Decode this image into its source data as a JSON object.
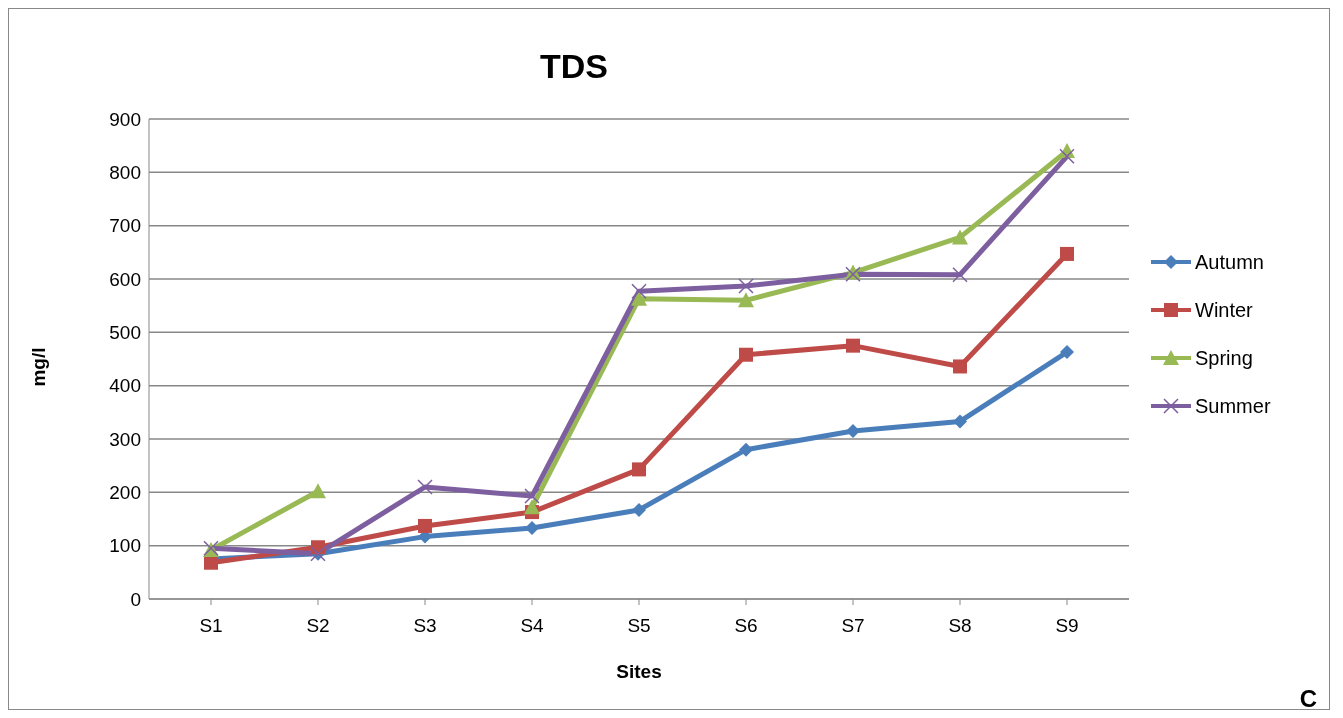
{
  "chart_data": {
    "type": "line",
    "title": "TDS",
    "xlabel": "Sites",
    "ylabel": "mg/l",
    "categories": [
      "S1",
      "S2",
      "S3",
      "S4",
      "S5",
      "S6",
      "S7",
      "S8",
      "S9"
    ],
    "series": [
      {
        "name": "Autumn",
        "color": "#4a7ebb",
        "marker": "diamond",
        "values": [
          75,
          85,
          117,
          133,
          167,
          280,
          315,
          333,
          463
        ]
      },
      {
        "name": "Winter",
        "color": "#be4b48",
        "marker": "square",
        "values": [
          68,
          97,
          137,
          163,
          243,
          458,
          475,
          436,
          647
        ]
      },
      {
        "name": "Spring",
        "color": "#98b954",
        "marker": "triangle",
        "values": [
          92,
          202,
          null,
          172,
          563,
          560,
          612,
          678,
          840
        ]
      },
      {
        "name": "Summer",
        "color": "#7d5fa0",
        "marker": "cross",
        "values": [
          95,
          85,
          210,
          193,
          577,
          587,
          609,
          608,
          830
        ]
      }
    ],
    "ylim": [
      0,
      900
    ],
    "yticks": [
      0,
      100,
      200,
      300,
      400,
      500,
      600,
      700,
      800,
      900
    ],
    "grid": "y",
    "legend": "right",
    "annotations": [
      "C"
    ]
  }
}
